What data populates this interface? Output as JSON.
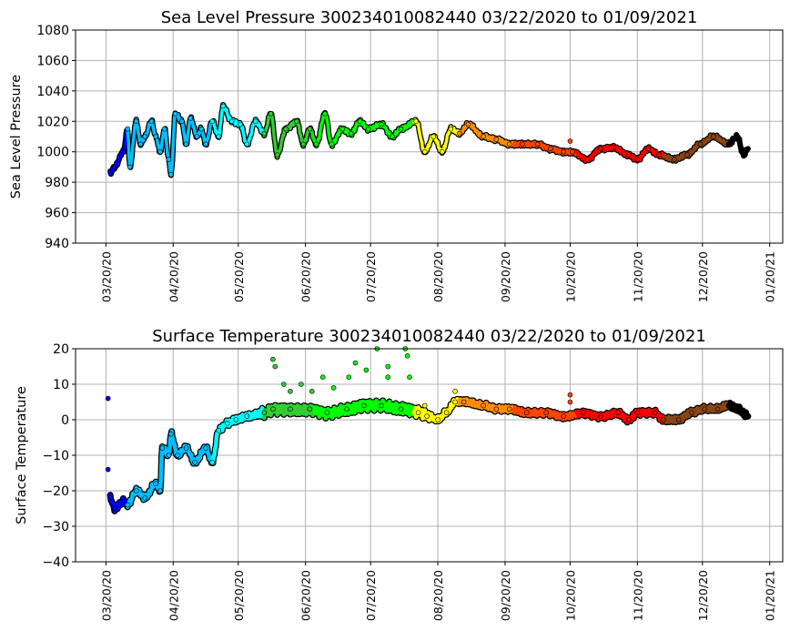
{
  "chart_data": [
    {
      "type": "line",
      "title": "Sea Level Pressure 300234010082440  03/22/2020 to 01/09/2021",
      "xlabel": "",
      "ylabel": "Sea Level Pressure",
      "ylim": [
        940,
        1080
      ],
      "yticks": [
        940,
        960,
        980,
        1000,
        1020,
        1040,
        1060,
        1080
      ],
      "x_units": "days since 03/20/2020",
      "xlim": [
        -14,
        312
      ],
      "xticks": [
        {
          "day": 0,
          "label": "03/20/20"
        },
        {
          "day": 31,
          "label": "04/20/20"
        },
        {
          "day": 61,
          "label": "05/20/20"
        },
        {
          "day": 92,
          "label": "06/20/20"
        },
        {
          "day": 122,
          "label": "07/20/20"
        },
        {
          "day": 153,
          "label": "08/20/20"
        },
        {
          "day": 184,
          "label": "09/20/20"
        },
        {
          "day": 214,
          "label": "10/20/20"
        },
        {
          "day": 245,
          "label": "11/20/20"
        },
        {
          "day": 275,
          "label": "12/20/20"
        },
        {
          "day": 306,
          "label": "01/20/21"
        }
      ],
      "grid": true,
      "points": [
        [
          2,
          986
        ],
        [
          4,
          990
        ],
        [
          8,
          1000
        ],
        [
          10,
          1015
        ],
        [
          11,
          990
        ],
        [
          14,
          1020
        ],
        [
          16,
          1005
        ],
        [
          18,
          1010
        ],
        [
          21,
          1020
        ],
        [
          23,
          1010
        ],
        [
          25,
          1000
        ],
        [
          27,
          1015
        ],
        [
          29,
          995
        ],
        [
          30,
          985
        ],
        [
          32,
          1025
        ],
        [
          35,
          1020
        ],
        [
          37,
          1005
        ],
        [
          39,
          1022
        ],
        [
          42,
          1010
        ],
        [
          44,
          1015
        ],
        [
          46,
          1005
        ],
        [
          49,
          1020
        ],
        [
          52,
          1010
        ],
        [
          54,
          1030
        ],
        [
          58,
          1020
        ],
        [
          62,
          1018
        ],
        [
          65,
          1005
        ],
        [
          69,
          1020
        ],
        [
          73,
          1012
        ],
        [
          76,
          1025
        ],
        [
          79,
          998
        ],
        [
          83,
          1015
        ],
        [
          88,
          1020
        ],
        [
          91,
          1005
        ],
        [
          94,
          1015
        ],
        [
          97,
          1005
        ],
        [
          101,
          1025
        ],
        [
          104,
          1005
        ],
        [
          109,
          1015
        ],
        [
          113,
          1012
        ],
        [
          117,
          1020
        ],
        [
          121,
          1015
        ],
        [
          127,
          1018
        ],
        [
          132,
          1010
        ],
        [
          136,
          1015
        ],
        [
          143,
          1020
        ],
        [
          147,
          1000
        ],
        [
          151,
          1010
        ],
        [
          155,
          1000
        ],
        [
          159,
          1015
        ],
        [
          163,
          1012
        ],
        [
          167,
          1018
        ],
        [
          174,
          1010
        ],
        [
          180,
          1008
        ],
        [
          186,
          1005
        ],
        [
          192,
          1005
        ],
        [
          199,
          1005
        ],
        [
          205,
          1002
        ],
        [
          211,
          1000
        ],
        [
          215,
          1000
        ],
        [
          222,
          995
        ],
        [
          228,
          1002
        ],
        [
          234,
          1003
        ],
        [
          241,
          998
        ],
        [
          245,
          995
        ],
        [
          250,
          1002
        ],
        [
          255,
          998
        ],
        [
          262,
          995
        ],
        [
          268,
          998
        ],
        [
          274,
          1005
        ],
        [
          280,
          1010
        ],
        [
          287,
          1005
        ],
        [
          291,
          1010
        ],
        [
          294,
          998
        ],
        [
          296,
          1002
        ]
      ],
      "outliers": [
        [
          214,
          1007
        ]
      ]
    },
    {
      "type": "scatter",
      "title": "Surface Temperature 300234010082440  03/22/2020 to 01/09/2021",
      "xlabel": "",
      "ylabel": "Surface Temperature",
      "ylim": [
        -40,
        20
      ],
      "yticks": [
        -40,
        -30,
        -20,
        -10,
        0,
        10,
        20
      ],
      "x_units": "days since 03/20/2020",
      "xlim": [
        -14,
        312
      ],
      "xticks": [
        {
          "day": 0,
          "label": "03/20/20"
        },
        {
          "day": 31,
          "label": "04/20/20"
        },
        {
          "day": 61,
          "label": "05/20/20"
        },
        {
          "day": 92,
          "label": "06/20/20"
        },
        {
          "day": 122,
          "label": "07/20/20"
        },
        {
          "day": 153,
          "label": "08/20/20"
        },
        {
          "day": 184,
          "label": "09/20/20"
        },
        {
          "day": 214,
          "label": "10/20/20"
        },
        {
          "day": 245,
          "label": "11/20/20"
        },
        {
          "day": 275,
          "label": "12/20/20"
        },
        {
          "day": 306,
          "label": "01/20/21"
        }
      ],
      "grid": true,
      "points": [
        [
          2,
          -22
        ],
        [
          4,
          -25
        ],
        [
          8,
          -23
        ],
        [
          10,
          -24
        ],
        [
          14,
          -20
        ],
        [
          18,
          -22
        ],
        [
          23,
          -18
        ],
        [
          25,
          -20
        ],
        [
          26,
          -8
        ],
        [
          29,
          -10
        ],
        [
          30,
          -4
        ],
        [
          33,
          -10
        ],
        [
          37,
          -8
        ],
        [
          41,
          -12
        ],
        [
          46,
          -8
        ],
        [
          49,
          -12
        ],
        [
          52,
          -3
        ],
        [
          56,
          -1
        ],
        [
          60,
          0
        ],
        [
          65,
          1
        ],
        [
          73,
          2
        ],
        [
          77,
          3
        ],
        [
          85,
          3
        ],
        [
          94,
          3
        ],
        [
          102,
          2
        ],
        [
          111,
          3
        ],
        [
          119,
          4
        ],
        [
          127,
          4
        ],
        [
          136,
          3
        ],
        [
          144,
          2
        ],
        [
          148,
          1
        ],
        [
          153,
          0
        ],
        [
          157,
          2
        ],
        [
          161,
          5
        ],
        [
          165,
          5
        ],
        [
          174,
          4
        ],
        [
          180,
          3
        ],
        [
          186,
          3
        ],
        [
          194,
          2
        ],
        [
          203,
          2
        ],
        [
          211,
          1
        ],
        [
          220,
          2
        ],
        [
          228,
          1
        ],
        [
          236,
          2
        ],
        [
          241,
          0
        ],
        [
          245,
          2
        ],
        [
          253,
          2
        ],
        [
          257,
          0
        ],
        [
          264,
          0
        ],
        [
          270,
          2
        ],
        [
          276,
          3
        ],
        [
          282,
          3
        ],
        [
          287,
          4
        ],
        [
          291,
          3
        ],
        [
          296,
          1
        ]
      ],
      "outliers": [
        [
          1,
          6
        ],
        [
          1,
          -14
        ],
        [
          77,
          17
        ],
        [
          78,
          15
        ],
        [
          82,
          10
        ],
        [
          90,
          10
        ],
        [
          100,
          12
        ],
        [
          112,
          12
        ],
        [
          115,
          16
        ],
        [
          120,
          14
        ],
        [
          125,
          20
        ],
        [
          130,
          15
        ],
        [
          138,
          20
        ],
        [
          139,
          18
        ],
        [
          140,
          12
        ],
        [
          130,
          12
        ],
        [
          85,
          8
        ],
        [
          95,
          8
        ],
        [
          105,
          9
        ],
        [
          147,
          4
        ],
        [
          214,
          7
        ],
        [
          214,
          5
        ],
        [
          161,
          8
        ]
      ]
    }
  ],
  "color_segments": [
    {
      "from": 0,
      "to": 10,
      "color": "#0000ff"
    },
    {
      "from": 10,
      "to": 49,
      "color": "#00bfff"
    },
    {
      "from": 49,
      "to": 73,
      "color": "#00ffff"
    },
    {
      "from": 73,
      "to": 96,
      "color": "#32cd32"
    },
    {
      "from": 96,
      "to": 142,
      "color": "#00ff00"
    },
    {
      "from": 142,
      "to": 163,
      "color": "#ffff00"
    },
    {
      "from": 163,
      "to": 188,
      "color": "#ff8c00"
    },
    {
      "from": 188,
      "to": 217,
      "color": "#ff4500"
    },
    {
      "from": 217,
      "to": 257,
      "color": "#ff0000"
    },
    {
      "from": 257,
      "to": 287,
      "color": "#8b4513"
    },
    {
      "from": 287,
      "to": 300,
      "color": "#000000"
    }
  ]
}
